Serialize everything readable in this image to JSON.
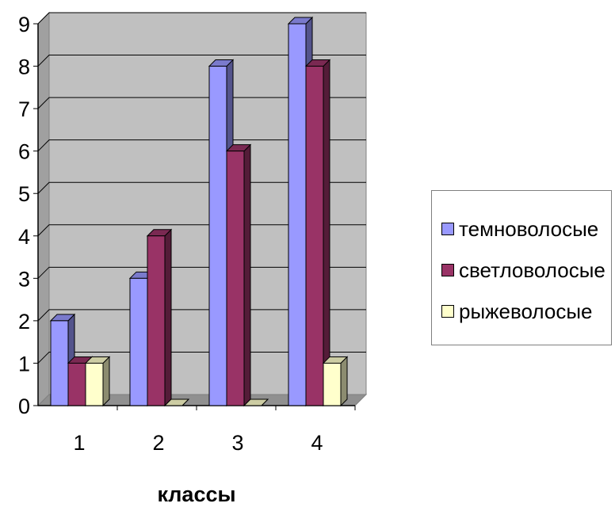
{
  "chart_data": {
    "type": "bar",
    "style": "3d-clustered-column",
    "categories": [
      "1",
      "2",
      "3",
      "4"
    ],
    "series": [
      {
        "name": "темноволосые",
        "values": [
          2,
          3,
          8,
          9
        ],
        "color": "#9999ff"
      },
      {
        "name": "светловолосые",
        "values": [
          1,
          4,
          6,
          8
        ],
        "color": "#993366"
      },
      {
        "name": "рыжеволосые",
        "values": [
          1,
          0,
          0,
          1
        ],
        "color": "#ffffcc"
      }
    ],
    "title": "",
    "xlabel": "классы",
    "ylabel": "",
    "ylim": [
      0,
      9
    ],
    "yticks": [
      "0",
      "1",
      "2",
      "3",
      "4",
      "5",
      "6",
      "7",
      "8",
      "9"
    ],
    "grid": true,
    "wall_color": "#c0c0c0",
    "legend_position": "right"
  }
}
